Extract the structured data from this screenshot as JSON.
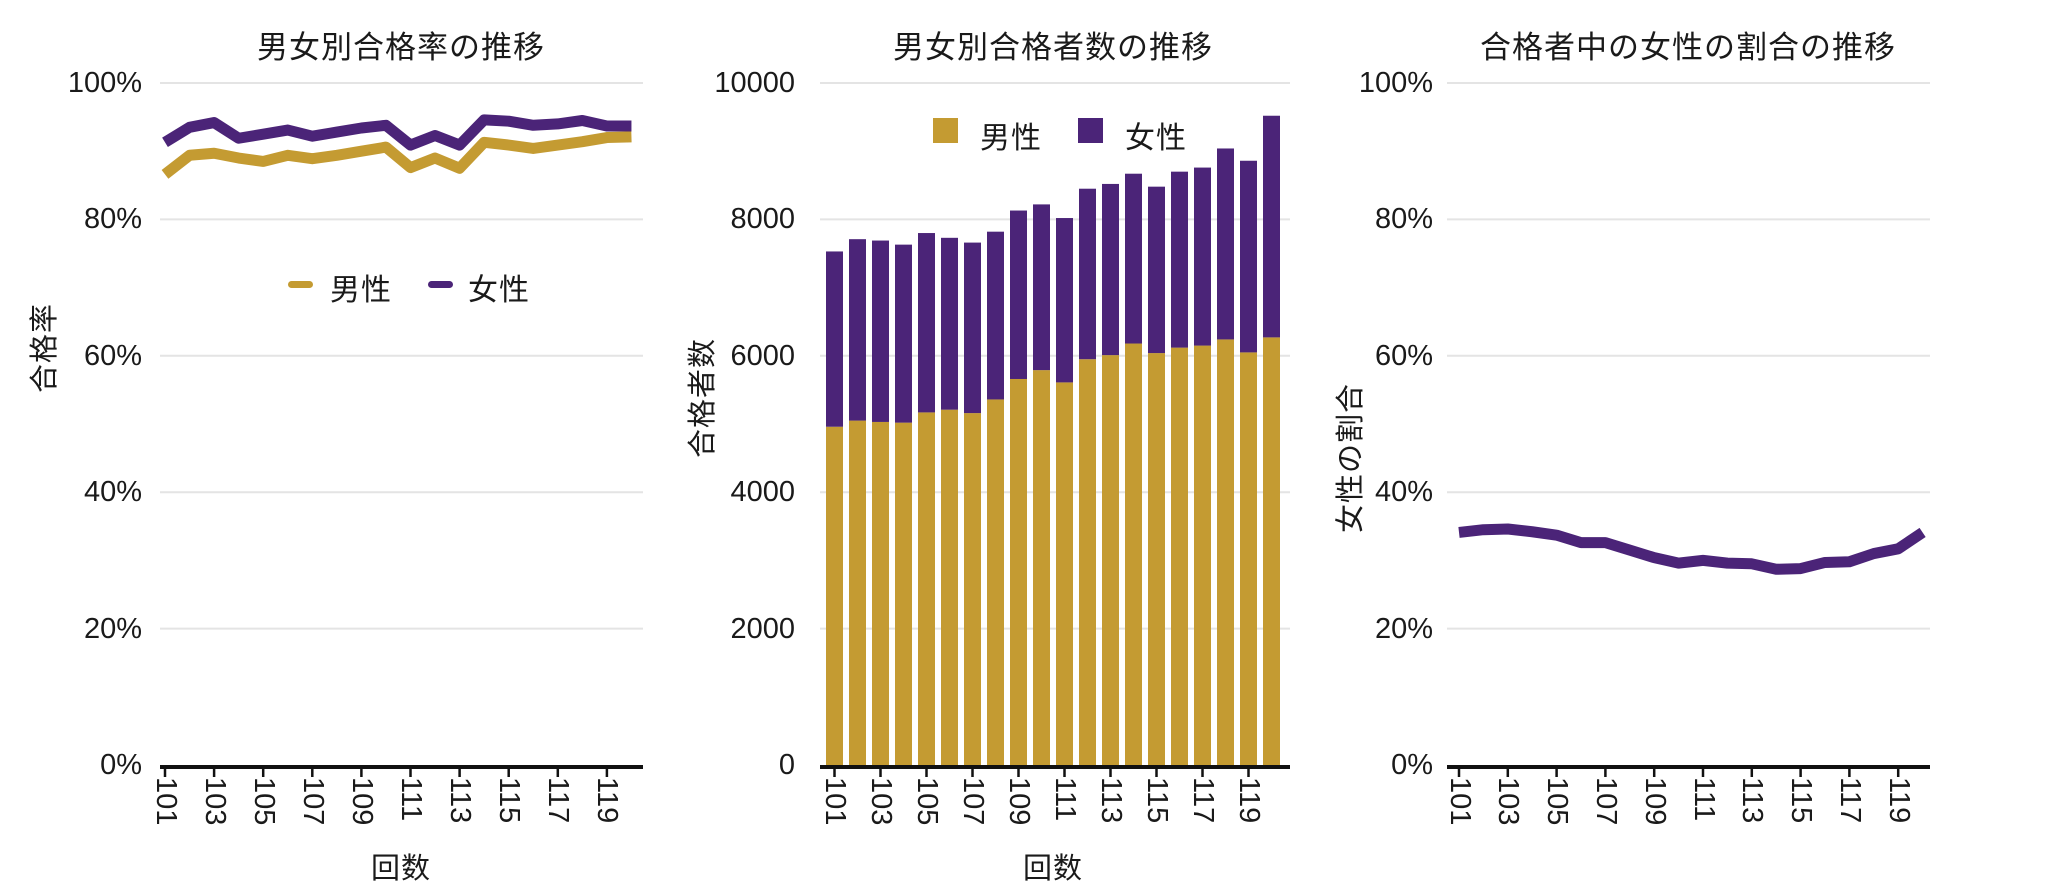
{
  "colors": {
    "male": "#C49B32",
    "female": "#4B2478",
    "grid": "#E4E4E4",
    "axis": "#111111",
    "text": "#1A1A1A"
  },
  "legend": {
    "male_label": "男性",
    "female_label": "女性"
  },
  "chart_data": [
    {
      "type": "line",
      "title": "男女別合格率の推移",
      "ylabel": "合格率",
      "xlabel": "回数",
      "x": [
        101,
        102,
        103,
        104,
        105,
        106,
        107,
        108,
        109,
        110,
        111,
        112,
        113,
        114,
        115,
        116,
        117,
        118,
        119,
        120
      ],
      "xticks": [
        "101",
        "103",
        "105",
        "107",
        "109",
        "111",
        "113",
        "115",
        "117",
        "119"
      ],
      "yticks": [
        "0%",
        "20%",
        "40%",
        "60%",
        "80%",
        "100%"
      ],
      "ytick_values": [
        0,
        20,
        40,
        60,
        80,
        100
      ],
      "ylim": [
        0,
        100
      ],
      "grid": "horizontal",
      "legend_position": "inside-upper-area",
      "series": [
        {
          "name": "男性",
          "color_key": "male",
          "values": [
            86.6,
            89.4,
            89.7,
            89.0,
            88.5,
            89.4,
            88.9,
            89.4,
            90.0,
            90.6,
            87.6,
            89.0,
            87.5,
            91.3,
            90.9,
            90.4,
            90.9,
            91.4,
            92.0,
            92.1
          ]
        },
        {
          "name": "女性",
          "color_key": "female",
          "values": [
            91.3,
            93.5,
            94.2,
            91.9,
            92.5,
            93.1,
            92.2,
            92.8,
            93.4,
            93.8,
            90.9,
            92.3,
            90.9,
            94.6,
            94.4,
            93.8,
            94.0,
            94.5,
            93.7,
            93.7
          ]
        }
      ]
    },
    {
      "type": "bar",
      "stacked": true,
      "title": "男女別合格者数の推移",
      "ylabel": "合格者数",
      "xlabel": "回数",
      "x": [
        101,
        102,
        103,
        104,
        105,
        106,
        107,
        108,
        109,
        110,
        111,
        112,
        113,
        114,
        115,
        116,
        117,
        118,
        119,
        120
      ],
      "xticks": [
        "101",
        "103",
        "105",
        "107",
        "109",
        "111",
        "113",
        "115",
        "117",
        "119"
      ],
      "yticks": [
        "0",
        "2000",
        "4000",
        "6000",
        "8000",
        "10000"
      ],
      "ytick_values": [
        0,
        2000,
        4000,
        6000,
        8000,
        10000
      ],
      "ylim": [
        0,
        10000
      ],
      "grid": "horizontal",
      "legend_position": "inside-top",
      "series": [
        {
          "name": "男性",
          "color_key": "male",
          "values": [
            4960,
            5050,
            5030,
            5020,
            5170,
            5210,
            5160,
            5360,
            5660,
            5790,
            5610,
            5950,
            6010,
            6180,
            6040,
            6120,
            6150,
            6240,
            6050,
            6270
          ]
        },
        {
          "name": "女性",
          "color_key": "female",
          "values": [
            2570,
            2660,
            2660,
            2610,
            2630,
            2520,
            2500,
            2460,
            2470,
            2430,
            2410,
            2500,
            2510,
            2490,
            2440,
            2580,
            2610,
            2800,
            2810,
            3250
          ]
        }
      ],
      "totals": [
        7530,
        7710,
        7690,
        7630,
        7800,
        7730,
        7660,
        7820,
        8130,
        8220,
        8020,
        8450,
        8520,
        8670,
        8480,
        8700,
        8760,
        9040,
        8860,
        9520
      ]
    },
    {
      "type": "line",
      "title": "合格者中の女性の割合の推移",
      "ylabel": "女性の割合",
      "xlabel": "",
      "x": [
        101,
        102,
        103,
        104,
        105,
        106,
        107,
        108,
        109,
        110,
        111,
        112,
        113,
        114,
        115,
        116,
        117,
        118,
        119,
        120
      ],
      "xticks": [
        "101",
        "103",
        "105",
        "107",
        "109",
        "111",
        "113",
        "115",
        "117",
        "119"
      ],
      "yticks": [
        "0%",
        "20%",
        "40%",
        "60%",
        "80%",
        "100%"
      ],
      "ytick_values": [
        0,
        20,
        40,
        60,
        80,
        100
      ],
      "ylim": [
        0,
        100
      ],
      "grid": "horizontal",
      "legend_position": "none",
      "series": [
        {
          "name": "女性の割合",
          "color_key": "female",
          "values": [
            34.1,
            34.5,
            34.6,
            34.2,
            33.7,
            32.6,
            32.6,
            31.5,
            30.4,
            29.6,
            30.0,
            29.6,
            29.5,
            28.7,
            28.8,
            29.7,
            29.8,
            31.0,
            31.7,
            34.1
          ]
        }
      ]
    }
  ]
}
